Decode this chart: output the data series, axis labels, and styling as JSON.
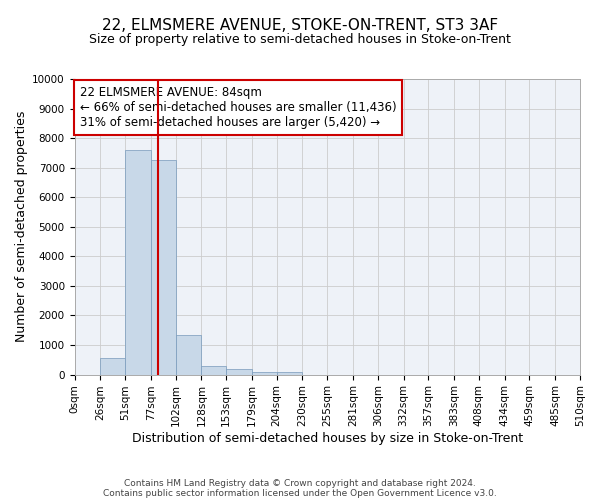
{
  "title_line1": "22, ELMSMERE AVENUE, STOKE-ON-TRENT, ST3 3AF",
  "title_line2": "Size of property relative to semi-detached houses in Stoke-on-Trent",
  "xlabel": "Distribution of semi-detached houses by size in Stoke-on-Trent",
  "ylabel": "Number of semi-detached properties",
  "footer_line1": "Contains HM Land Registry data © Crown copyright and database right 2024.",
  "footer_line2": "Contains public sector information licensed under the Open Government Licence v3.0.",
  "bin_labels": [
    "0sqm",
    "26sqm",
    "51sqm",
    "77sqm",
    "102sqm",
    "128sqm",
    "153sqm",
    "179sqm",
    "204sqm",
    "230sqm",
    "255sqm",
    "281sqm",
    "306sqm",
    "332sqm",
    "357sqm",
    "383sqm",
    "408sqm",
    "434sqm",
    "459sqm",
    "485sqm",
    "510sqm"
  ],
  "bin_edges": [
    0,
    26,
    51,
    77,
    102,
    128,
    153,
    179,
    204,
    230,
    255,
    281,
    306,
    332,
    357,
    383,
    408,
    434,
    459,
    485,
    510
  ],
  "bar_heights": [
    0,
    550,
    7600,
    7250,
    1350,
    300,
    175,
    100,
    100,
    0,
    0,
    0,
    0,
    0,
    0,
    0,
    0,
    0,
    0,
    0
  ],
  "bar_color": "#c8d8e8",
  "bar_edge_color": "#7799bb",
  "property_value": 84,
  "red_line_color": "#cc0000",
  "annotation_line1": "22 ELMSMERE AVENUE: 84sqm",
  "annotation_line2": "← 66% of semi-detached houses are smaller (11,436)",
  "annotation_line3": "31% of semi-detached houses are larger (5,420) →",
  "annotation_box_color": "#ffffff",
  "annotation_box_edge": "#cc0000",
  "ylim": [
    0,
    10000
  ],
  "yticks": [
    0,
    1000,
    2000,
    3000,
    4000,
    5000,
    6000,
    7000,
    8000,
    9000,
    10000
  ],
  "grid_color": "#cccccc",
  "plot_bg_color": "#eef2f8",
  "title_fontsize": 11,
  "subtitle_fontsize": 9,
  "axis_label_fontsize": 9,
  "tick_fontsize": 7.5,
  "annotation_fontsize": 8.5,
  "footer_fontsize": 6.5
}
